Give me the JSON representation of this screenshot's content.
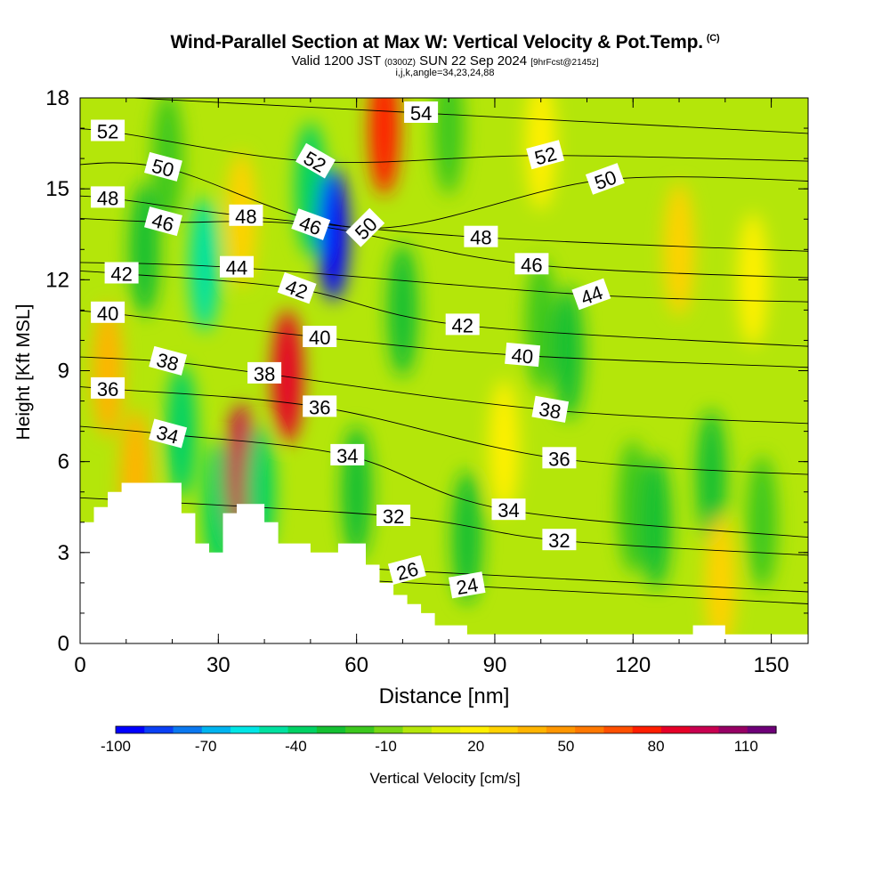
{
  "header": {
    "title": "Wind-Parallel Section at Max W: Vertical Velocity & Pot.Temp.",
    "copyright": "(C)",
    "valid_prefix": "Valid 1200 JST",
    "valid_utc": "(0300Z)",
    "valid_date": "SUN 22 Sep 2024",
    "forecast": "[9hrFcst@2145z]",
    "indices": "i,j,k,angle=34,23,24,88"
  },
  "chart_data": {
    "type": "heatmap",
    "title": "Wind-Parallel Section at Max W: Vertical Velocity & Pot.Temp.",
    "xlabel": "Distance [nm]",
    "ylabel": "Height [Kft MSL]",
    "xlim": [
      0,
      158
    ],
    "ylim": [
      0,
      18
    ],
    "xticks": [
      0,
      30,
      60,
      90,
      120,
      150
    ],
    "yticks": [
      0,
      3,
      6,
      9,
      12,
      15,
      18
    ],
    "grid": false,
    "colorbar": {
      "label": "Vertical Velocity [cm/s]",
      "tick_values": [
        -100,
        -70,
        -40,
        -10,
        20,
        50,
        80,
        110
      ],
      "levels": [
        -100,
        -90,
        -80,
        -70,
        -60,
        -50,
        -40,
        -30,
        -20,
        -10,
        0,
        10,
        20,
        30,
        40,
        50,
        60,
        70,
        80,
        90,
        100,
        110,
        120
      ],
      "colors": [
        "#0000ff",
        "#0a40f5",
        "#0a78f0",
        "#00b4f0",
        "#00e6e6",
        "#00e1a0",
        "#00d264",
        "#14c032",
        "#3cc81e",
        "#78d714",
        "#b4e60a",
        "#dcf000",
        "#fff000",
        "#ffd200",
        "#ffb400",
        "#ff9600",
        "#ff7800",
        "#ff5000",
        "#ff1e00",
        "#e60028",
        "#c80050",
        "#960064",
        "#6e0078"
      ]
    },
    "velocity_features": [
      {
        "x": 6,
        "y": 9.0,
        "value": 40
      },
      {
        "x": 12,
        "y": 5.5,
        "value": 40
      },
      {
        "x": 14,
        "y": 13.0,
        "value": -30
      },
      {
        "x": 19,
        "y": 16.0,
        "value": -20
      },
      {
        "x": 22,
        "y": 7.0,
        "value": -40
      },
      {
        "x": 27,
        "y": 12.5,
        "value": -50
      },
      {
        "x": 30,
        "y": 4.5,
        "value": -40
      },
      {
        "x": 35,
        "y": 5.7,
        "value": 100
      },
      {
        "x": 35,
        "y": 14.0,
        "value": 30
      },
      {
        "x": 39,
        "y": 5.0,
        "value": -40
      },
      {
        "x": 45,
        "y": 8.8,
        "value": 90
      },
      {
        "x": 50,
        "y": 15.0,
        "value": -40
      },
      {
        "x": 55,
        "y": 13.5,
        "value": -95
      },
      {
        "x": 60,
        "y": 5.0,
        "value": -30
      },
      {
        "x": 66,
        "y": 17.0,
        "value": 80
      },
      {
        "x": 70,
        "y": 11.0,
        "value": -30
      },
      {
        "x": 80,
        "y": 17.0,
        "value": -20
      },
      {
        "x": 84,
        "y": 3.5,
        "value": -30
      },
      {
        "x": 92,
        "y": 6.5,
        "value": 20
      },
      {
        "x": 100,
        "y": 16.5,
        "value": 20
      },
      {
        "x": 100,
        "y": 10.5,
        "value": -20
      },
      {
        "x": 106,
        "y": 9.6,
        "value": -30
      },
      {
        "x": 120,
        "y": 4.5,
        "value": -20
      },
      {
        "x": 125,
        "y": 4.0,
        "value": -30
      },
      {
        "x": 130,
        "y": 13.0,
        "value": 30
      },
      {
        "x": 137,
        "y": 5.5,
        "value": -30
      },
      {
        "x": 139,
        "y": 2.0,
        "value": 30
      },
      {
        "x": 146,
        "y": 12.0,
        "value": 20
      },
      {
        "x": 148,
        "y": 4.0,
        "value": -20
      }
    ],
    "terrain": [
      [
        0,
        4.0
      ],
      [
        3,
        4.0
      ],
      [
        3,
        4.5
      ],
      [
        6,
        4.5
      ],
      [
        6,
        5.0
      ],
      [
        9,
        5.0
      ],
      [
        9,
        5.3
      ],
      [
        22,
        5.3
      ],
      [
        22,
        4.3
      ],
      [
        25,
        4.3
      ],
      [
        25,
        3.3
      ],
      [
        28,
        3.3
      ],
      [
        28,
        3.0
      ],
      [
        31,
        3.0
      ],
      [
        31,
        4.3
      ],
      [
        34,
        4.3
      ],
      [
        34,
        4.6
      ],
      [
        40,
        4.6
      ],
      [
        40,
        4.0
      ],
      [
        43,
        4.0
      ],
      [
        43,
        3.3
      ],
      [
        50,
        3.3
      ],
      [
        50,
        3.0
      ],
      [
        56,
        3.0
      ],
      [
        56,
        3.3
      ],
      [
        62,
        3.3
      ],
      [
        62,
        2.6
      ],
      [
        65,
        2.6
      ],
      [
        65,
        2.0
      ],
      [
        68,
        2.0
      ],
      [
        68,
        1.6
      ],
      [
        71,
        1.6
      ],
      [
        71,
        1.3
      ],
      [
        74,
        1.3
      ],
      [
        74,
        1.0
      ],
      [
        77,
        1.0
      ],
      [
        77,
        0.6
      ],
      [
        84,
        0.6
      ],
      [
        84,
        0.3
      ],
      [
        133,
        0.3
      ],
      [
        133,
        0.6
      ],
      [
        140,
        0.6
      ],
      [
        140,
        0.3
      ],
      [
        158,
        0.3
      ]
    ],
    "theta_labels": [
      {
        "text": "52",
        "x": 6,
        "y": 16.9,
        "rotate": 0
      },
      {
        "text": "50",
        "x": 18,
        "y": 15.7,
        "rotate": 15
      },
      {
        "text": "48",
        "x": 6,
        "y": 14.7,
        "rotate": 0
      },
      {
        "text": "46",
        "x": 18,
        "y": 13.9,
        "rotate": 15
      },
      {
        "text": "48",
        "x": 36,
        "y": 14.1,
        "rotate": 0
      },
      {
        "text": "52",
        "x": 51,
        "y": 15.9,
        "rotate": 30
      },
      {
        "text": "46",
        "x": 50,
        "y": 13.8,
        "rotate": 20
      },
      {
        "text": "50",
        "x": 62,
        "y": 13.7,
        "rotate": -45
      },
      {
        "text": "54",
        "x": 74,
        "y": 17.5,
        "rotate": 0
      },
      {
        "text": "52",
        "x": 101,
        "y": 16.1,
        "rotate": -15
      },
      {
        "text": "50",
        "x": 114,
        "y": 15.3,
        "rotate": -20
      },
      {
        "text": "48",
        "x": 87,
        "y": 13.4,
        "rotate": 0
      },
      {
        "text": "46",
        "x": 98,
        "y": 12.5,
        "rotate": 0
      },
      {
        "text": "44",
        "x": 111,
        "y": 11.5,
        "rotate": -20
      },
      {
        "text": "42",
        "x": 9,
        "y": 12.2,
        "rotate": 0
      },
      {
        "text": "44",
        "x": 34,
        "y": 12.4,
        "rotate": 0
      },
      {
        "text": "42",
        "x": 47,
        "y": 11.7,
        "rotate": 20
      },
      {
        "text": "40",
        "x": 6,
        "y": 10.9,
        "rotate": 0
      },
      {
        "text": "40",
        "x": 52,
        "y": 10.1,
        "rotate": 0
      },
      {
        "text": "42",
        "x": 83,
        "y": 10.5,
        "rotate": 0
      },
      {
        "text": "40",
        "x": 96,
        "y": 9.5,
        "rotate": 5
      },
      {
        "text": "38",
        "x": 19,
        "y": 9.3,
        "rotate": 15
      },
      {
        "text": "38",
        "x": 40,
        "y": 8.9,
        "rotate": 0
      },
      {
        "text": "36",
        "x": 6,
        "y": 8.4,
        "rotate": 0
      },
      {
        "text": "36",
        "x": 52,
        "y": 7.8,
        "rotate": 0
      },
      {
        "text": "38",
        "x": 102,
        "y": 7.7,
        "rotate": 10
      },
      {
        "text": "34",
        "x": 19,
        "y": 6.9,
        "rotate": 15
      },
      {
        "text": "34",
        "x": 58,
        "y": 6.2,
        "rotate": 0
      },
      {
        "text": "36",
        "x": 104,
        "y": 6.1,
        "rotate": 0
      },
      {
        "text": "32",
        "x": 68,
        "y": 4.2,
        "rotate": 0
      },
      {
        "text": "34",
        "x": 93,
        "y": 4.4,
        "rotate": 0
      },
      {
        "text": "32",
        "x": 104,
        "y": 3.4,
        "rotate": 0
      },
      {
        "text": "26",
        "x": 71,
        "y": 2.4,
        "rotate": -15
      },
      {
        "text": "24",
        "x": 84,
        "y": 1.9,
        "rotate": -10
      }
    ]
  }
}
